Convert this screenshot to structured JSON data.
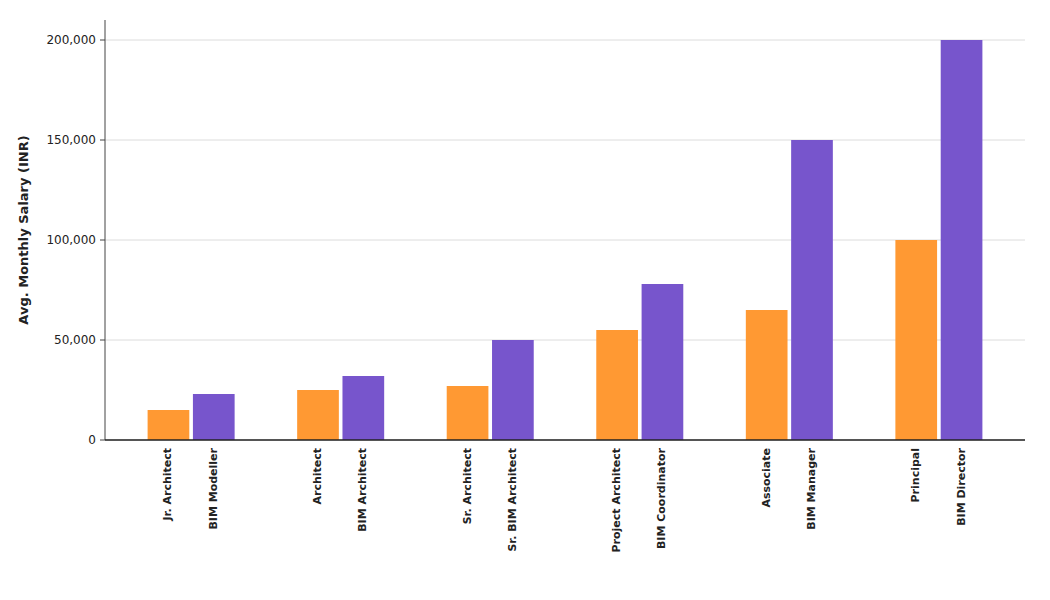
{
  "chart_data": {
    "type": "bar",
    "categories": [
      "Jr. Architect",
      "BIM Modeller",
      "Architect",
      "BIM Architect",
      "Sr. Architect",
      "Sr. BIM Architect",
      "Project Architect",
      "BIM Coordinator",
      "Associate",
      "BIM Manager",
      "Principal",
      "BIM Director"
    ],
    "values": [
      15000,
      23000,
      25000,
      32000,
      27000,
      50000,
      55000,
      78000,
      65000,
      150000,
      100000,
      200000
    ],
    "colors": [
      "#FF9933",
      "#7755CC",
      "#FF9933",
      "#7755CC",
      "#FF9933",
      "#7755CC",
      "#FF9933",
      "#7755CC",
      "#FF9933",
      "#7755CC",
      "#FF9933",
      "#7755CC"
    ],
    "y_label": "Avg. Monthly Salary (INR)",
    "ylim": [
      0,
      210000
    ],
    "yticks": [
      0,
      {
        "value": 50000,
        "label": "50,000"
      },
      {
        "value": 100000,
        "label": "100,000"
      },
      {
        "value": 150000,
        "label": "150,000"
      },
      {
        "value": 200000,
        "label": "200,000"
      }
    ],
    "grid": true
  }
}
